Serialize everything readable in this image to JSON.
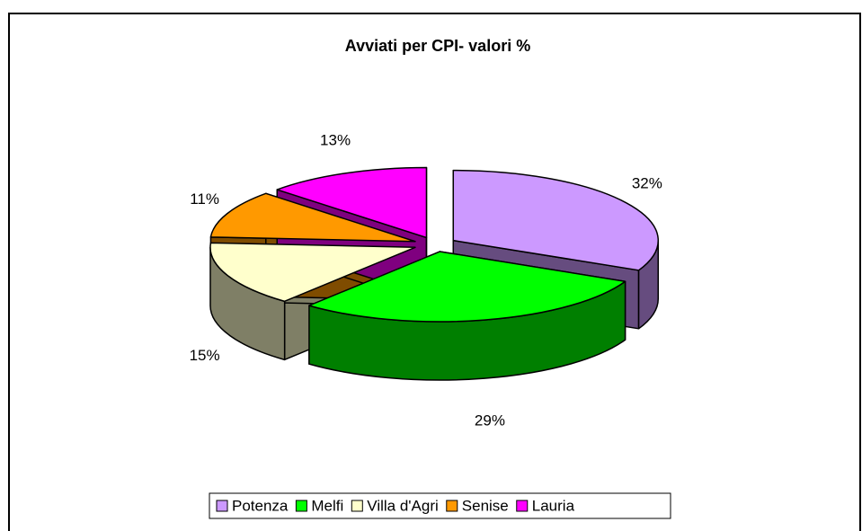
{
  "chart_data": {
    "type": "pie3d",
    "title": "Avviati per CPI- valori %",
    "categories": [
      "Potenza",
      "Melfi",
      "Villa d'Agri",
      "Senise",
      "Lauria"
    ],
    "values": [
      32,
      29,
      15,
      11,
      13
    ],
    "value_labels": [
      "32%",
      "29%",
      "15%",
      "11%",
      "13%"
    ],
    "colors": [
      "#cc99ff",
      "#00ff00",
      "#ffffcc",
      "#ff9900",
      "#ff00ff"
    ],
    "legend": "bottom"
  }
}
